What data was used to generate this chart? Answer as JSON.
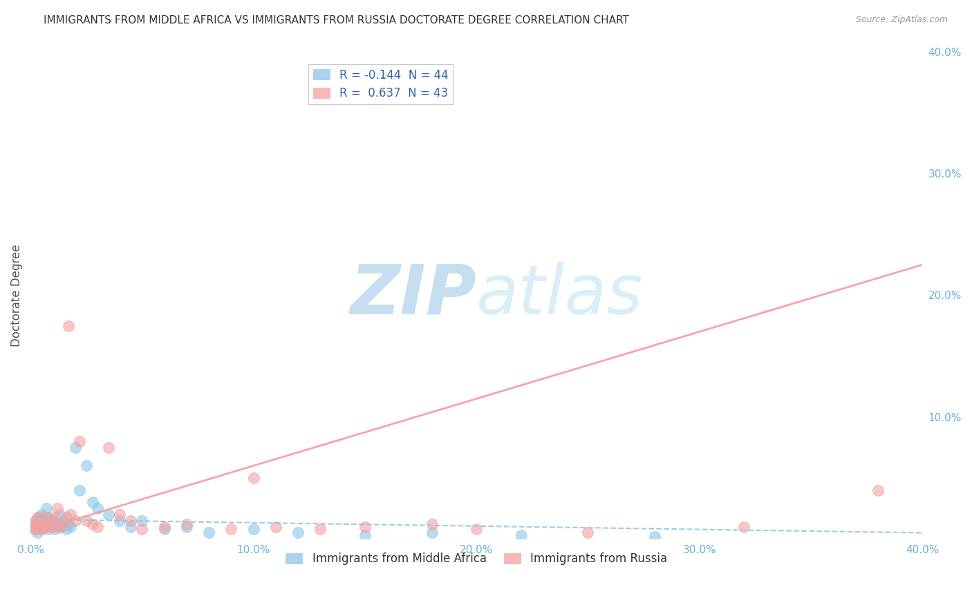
{
  "title": "IMMIGRANTS FROM MIDDLE AFRICA VS IMMIGRANTS FROM RUSSIA DOCTORATE DEGREE CORRELATION CHART",
  "source": "Source: ZipAtlas.com",
  "ylabel": "Doctorate Degree",
  "xlim": [
    0.0,
    0.4
  ],
  "ylim": [
    0.0,
    0.4
  ],
  "xticks": [
    0.0,
    0.1,
    0.2,
    0.3,
    0.4
  ],
  "yticks": [
    0.1,
    0.2,
    0.3,
    0.4
  ],
  "xtick_labels": [
    "0.0%",
    "10.0%",
    "20.0%",
    "30.0%",
    "40.0%"
  ],
  "ytick_labels": [
    "10.0%",
    "20.0%",
    "30.0%",
    "40.0%"
  ],
  "series1_label": "Immigrants from Middle Africa",
  "series1_color": "#8dc6e8",
  "series1_R": -0.144,
  "series1_N": 44,
  "series2_label": "Immigrants from Russia",
  "series2_color": "#f4a0a0",
  "series2_R": 0.637,
  "series2_N": 43,
  "background_color": "#ffffff",
  "grid_color": "#cccccc",
  "title_color": "#333333",
  "axis_label_color": "#6aaed6",
  "watermark_text": "ZIPatlas",
  "watermark_color": "#daeef8",
  "series1_x": [
    0.001,
    0.002,
    0.002,
    0.003,
    0.003,
    0.004,
    0.004,
    0.005,
    0.005,
    0.006,
    0.006,
    0.007,
    0.007,
    0.008,
    0.008,
    0.009,
    0.01,
    0.01,
    0.011,
    0.012,
    0.013,
    0.014,
    0.015,
    0.016,
    0.017,
    0.018,
    0.02,
    0.022,
    0.025,
    0.028,
    0.03,
    0.035,
    0.04,
    0.045,
    0.05,
    0.06,
    0.07,
    0.08,
    0.1,
    0.12,
    0.15,
    0.18,
    0.22,
    0.28
  ],
  "series1_y": [
    0.01,
    0.012,
    0.008,
    0.015,
    0.005,
    0.018,
    0.01,
    0.02,
    0.008,
    0.012,
    0.015,
    0.01,
    0.025,
    0.008,
    0.018,
    0.012,
    0.01,
    0.015,
    0.008,
    0.012,
    0.02,
    0.01,
    0.015,
    0.008,
    0.012,
    0.01,
    0.075,
    0.04,
    0.06,
    0.03,
    0.025,
    0.02,
    0.015,
    0.01,
    0.015,
    0.008,
    0.01,
    0.005,
    0.008,
    0.005,
    0.003,
    0.005,
    0.003,
    0.002
  ],
  "series2_x": [
    0.001,
    0.002,
    0.002,
    0.003,
    0.003,
    0.004,
    0.005,
    0.005,
    0.006,
    0.007,
    0.007,
    0.008,
    0.009,
    0.01,
    0.01,
    0.011,
    0.012,
    0.013,
    0.015,
    0.016,
    0.017,
    0.018,
    0.02,
    0.022,
    0.025,
    0.028,
    0.03,
    0.035,
    0.04,
    0.045,
    0.05,
    0.06,
    0.07,
    0.09,
    0.1,
    0.11,
    0.13,
    0.15,
    0.18,
    0.2,
    0.25,
    0.32,
    0.38
  ],
  "series2_y": [
    0.01,
    0.008,
    0.015,
    0.012,
    0.018,
    0.01,
    0.015,
    0.008,
    0.012,
    0.01,
    0.018,
    0.015,
    0.012,
    0.01,
    0.015,
    0.018,
    0.025,
    0.01,
    0.012,
    0.018,
    0.175,
    0.02,
    0.015,
    0.08,
    0.015,
    0.012,
    0.01,
    0.075,
    0.02,
    0.015,
    0.008,
    0.01,
    0.012,
    0.008,
    0.05,
    0.01,
    0.008,
    0.01,
    0.012,
    0.008,
    0.005,
    0.01,
    0.04
  ],
  "trendline1_x0": 0.0,
  "trendline1_x1": 0.4,
  "trendline1_y0": 0.016,
  "trendline1_y1": 0.005,
  "trendline2_x0": 0.0,
  "trendline2_x1": 0.4,
  "trendline2_y0": 0.005,
  "trendline2_y1": 0.225
}
